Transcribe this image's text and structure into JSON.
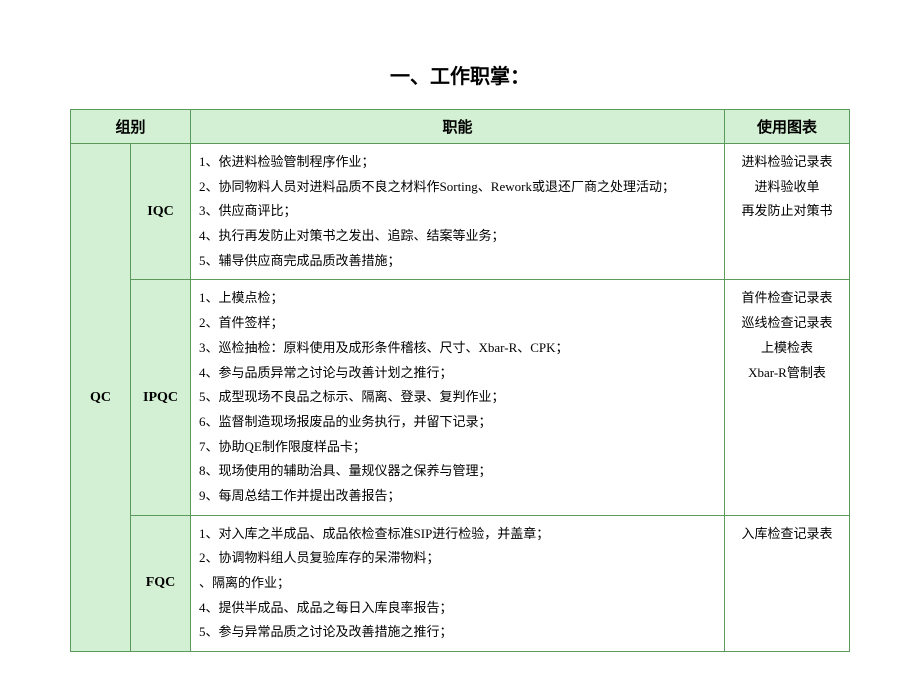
{
  "title": "一、工作职掌：",
  "headers": {
    "group": "组别",
    "function": "职能",
    "chart": "使用图表"
  },
  "table": {
    "parent_group": "QC",
    "rows": [
      {
        "sub_group": "IQC",
        "functions": [
          "1、依进料检验管制程序作业；",
          "2、协同物料人员对进料品质不良之材料作Sorting、Rework或退还厂商之处理活动；",
          "3、供应商评比；",
          "4、执行再发防止对策书之发出、追踪、结案等业务；",
          "5、辅导供应商完成品质改善措施；"
        ],
        "charts": [
          "进料检验记录表",
          "进料验收单",
          "再发防止对策书"
        ]
      },
      {
        "sub_group": "IPQC",
        "functions": [
          "1、上模点检；",
          "2、首件签样；",
          "3、巡检抽检：原料使用及成形条件稽核、尺寸、Xbar-R、CPK；",
          "4、参与品质异常之讨论与改善计划之推行；",
          "5、成型现场不良品之标示、隔离、登录、复判作业；",
          "6、监督制造现场报废品的业务执行，并留下记录；",
          "7、协助QE制作限度样品卡；",
          "8、现场使用的辅助治具、量规仪器之保养与管理；",
          "9、每周总结工作并提出改善报告；"
        ],
        "charts": [
          "首件检查记录表",
          "巡线检查记录表",
          "上模检表",
          "Xbar-R管制表"
        ]
      },
      {
        "sub_group": "FQC",
        "functions": [
          "1、对入库之半成品、成品依检查标准SIP进行检验，并盖章；",
          "2、协调物料组人员复验库存的呆滞物料；",
          "、隔离的作业；",
          "4、提供半成品、成品之每日入库良率报告；",
          "5、参与异常品质之讨论及改善措施之推行；"
        ],
        "charts": [
          "入库检查记录表"
        ]
      }
    ]
  },
  "colors": {
    "header_bg": "#d4f0d4",
    "border": "#5a9a5a",
    "background": "#ffffff",
    "text": "#000000"
  }
}
